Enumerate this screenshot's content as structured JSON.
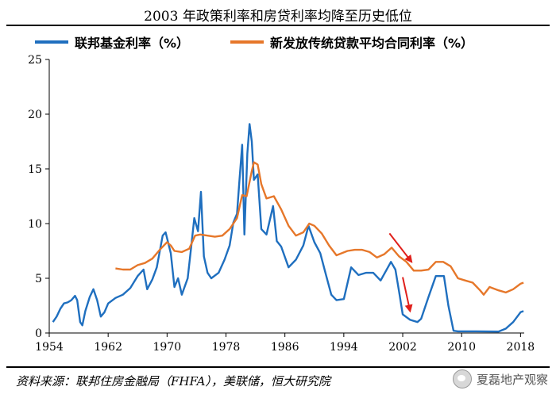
{
  "title": "2003 年政策利率和房贷利率均降至历史低位",
  "legend": {
    "series1": "联邦基金利率（%）",
    "series2": "新发放传统贷款平均合同利率（%）"
  },
  "source": "资料来源：联邦住房金融局（FHFA），美联储，恒大研究院",
  "watermark": "夏磊地产观察",
  "colors": {
    "fed": "#1f6fbf",
    "mortgage": "#e6772a",
    "arrow": "#e0201b",
    "axis": "#000000"
  },
  "chart_data": {
    "type": "line",
    "title": "2003 年政策利率和房贷利率均降至历史低位",
    "x_ticks": [
      "1954",
      "1962",
      "1970",
      "1978",
      "1986",
      "1994",
      "2002",
      "2010",
      "2018"
    ],
    "y_ticks": [
      "0",
      "5",
      "10",
      "15",
      "20",
      "25"
    ],
    "xlim": [
      1954,
      2018.5
    ],
    "ylim": [
      0,
      25
    ],
    "legend_position": "top",
    "grid": false,
    "series": [
      {
        "name": "联邦基金利率（%）",
        "color": "#1f6fbf",
        "points": [
          [
            1954.5,
            1.0
          ],
          [
            1955.0,
            1.5
          ],
          [
            1955.5,
            2.2
          ],
          [
            1956.0,
            2.7
          ],
          [
            1956.5,
            2.8
          ],
          [
            1957.0,
            3.0
          ],
          [
            1957.5,
            3.4
          ],
          [
            1957.8,
            3.0
          ],
          [
            1958.2,
            1.0
          ],
          [
            1958.5,
            0.7
          ],
          [
            1958.9,
            2.0
          ],
          [
            1959.5,
            3.3
          ],
          [
            1960.0,
            4.0
          ],
          [
            1960.5,
            3.0
          ],
          [
            1961.0,
            1.5
          ],
          [
            1961.5,
            1.9
          ],
          [
            1962.0,
            2.7
          ],
          [
            1963.0,
            3.2
          ],
          [
            1964.0,
            3.5
          ],
          [
            1965.0,
            4.1
          ],
          [
            1966.0,
            5.2
          ],
          [
            1966.8,
            5.8
          ],
          [
            1967.3,
            4.0
          ],
          [
            1968.0,
            4.9
          ],
          [
            1968.6,
            6.0
          ],
          [
            1969.4,
            8.9
          ],
          [
            1969.8,
            9.2
          ],
          [
            1970.5,
            7.3
          ],
          [
            1971.0,
            4.2
          ],
          [
            1971.5,
            5.0
          ],
          [
            1972.0,
            3.5
          ],
          [
            1972.8,
            5.0
          ],
          [
            1973.3,
            8.0
          ],
          [
            1973.7,
            10.5
          ],
          [
            1974.2,
            9.3
          ],
          [
            1974.6,
            12.9
          ],
          [
            1975.0,
            7.0
          ],
          [
            1975.5,
            5.5
          ],
          [
            1976.0,
            5.0
          ],
          [
            1977.0,
            5.5
          ],
          [
            1977.8,
            6.7
          ],
          [
            1978.5,
            8.0
          ],
          [
            1979.0,
            10.1
          ],
          [
            1979.5,
            10.9
          ],
          [
            1979.8,
            13.7
          ],
          [
            1980.2,
            17.2
          ],
          [
            1980.5,
            9.0
          ],
          [
            1980.9,
            16.4
          ],
          [
            1981.2,
            19.1
          ],
          [
            1981.5,
            17.5
          ],
          [
            1981.8,
            14.0
          ],
          [
            1982.3,
            14.5
          ],
          [
            1982.8,
            9.5
          ],
          [
            1983.5,
            9.0
          ],
          [
            1984.4,
            11.6
          ],
          [
            1984.9,
            8.4
          ],
          [
            1985.5,
            7.9
          ],
          [
            1986.5,
            6.0
          ],
          [
            1987.5,
            6.7
          ],
          [
            1988.5,
            8.0
          ],
          [
            1989.2,
            9.8
          ],
          [
            1990.0,
            8.3
          ],
          [
            1990.8,
            7.3
          ],
          [
            1991.5,
            5.5
          ],
          [
            1992.3,
            3.5
          ],
          [
            1993.0,
            3.0
          ],
          [
            1994.0,
            3.1
          ],
          [
            1995.0,
            6.0
          ],
          [
            1996.0,
            5.3
          ],
          [
            1997.0,
            5.5
          ],
          [
            1998.0,
            5.5
          ],
          [
            1999.0,
            4.8
          ],
          [
            2000.4,
            6.5
          ],
          [
            2001.0,
            5.8
          ],
          [
            2001.5,
            3.8
          ],
          [
            2002.0,
            1.7
          ],
          [
            2003.0,
            1.2
          ],
          [
            2004.0,
            1.0
          ],
          [
            2004.5,
            1.3
          ],
          [
            2005.5,
            3.3
          ],
          [
            2006.5,
            5.2
          ],
          [
            2007.6,
            5.2
          ],
          [
            2008.2,
            2.5
          ],
          [
            2008.9,
            0.2
          ],
          [
            2009.5,
            0.15
          ],
          [
            2012.0,
            0.15
          ],
          [
            2015.0,
            0.13
          ],
          [
            2016.0,
            0.4
          ],
          [
            2017.0,
            1.0
          ],
          [
            2018.0,
            1.9
          ],
          [
            2018.4,
            2.0
          ]
        ]
      },
      {
        "name": "新发放传统贷款平均合同利率（%）",
        "color": "#e6772a",
        "points": [
          [
            1963.0,
            5.9
          ],
          [
            1964.0,
            5.8
          ],
          [
            1965.0,
            5.8
          ],
          [
            1966.0,
            6.2
          ],
          [
            1967.0,
            6.4
          ],
          [
            1968.0,
            6.8
          ],
          [
            1969.0,
            7.6
          ],
          [
            1970.0,
            8.3
          ],
          [
            1970.5,
            8.0
          ],
          [
            1971.0,
            7.5
          ],
          [
            1972.0,
            7.4
          ],
          [
            1973.0,
            7.7
          ],
          [
            1973.8,
            8.9
          ],
          [
            1974.5,
            9.0
          ],
          [
            1975.5,
            8.9
          ],
          [
            1976.5,
            8.8
          ],
          [
            1977.5,
            8.9
          ],
          [
            1978.5,
            9.5
          ],
          [
            1979.5,
            10.5
          ],
          [
            1980.2,
            12.6
          ],
          [
            1980.8,
            12.5
          ],
          [
            1981.5,
            14.8
          ],
          [
            1981.8,
            15.6
          ],
          [
            1982.3,
            15.4
          ],
          [
            1982.8,
            13.6
          ],
          [
            1983.5,
            12.3
          ],
          [
            1984.5,
            12.5
          ],
          [
            1985.5,
            11.3
          ],
          [
            1986.5,
            9.8
          ],
          [
            1987.5,
            8.9
          ],
          [
            1988.5,
            9.2
          ],
          [
            1989.3,
            10.0
          ],
          [
            1990.0,
            9.8
          ],
          [
            1991.0,
            9.1
          ],
          [
            1992.0,
            8.0
          ],
          [
            1993.0,
            7.1
          ],
          [
            1994.5,
            7.5
          ],
          [
            1995.5,
            7.6
          ],
          [
            1996.5,
            7.6
          ],
          [
            1997.5,
            7.4
          ],
          [
            1998.5,
            6.9
          ],
          [
            1999.5,
            7.2
          ],
          [
            2000.5,
            7.8
          ],
          [
            2001.5,
            7.0
          ],
          [
            2002.5,
            6.5
          ],
          [
            2003.5,
            5.7
          ],
          [
            2004.5,
            5.7
          ],
          [
            2005.5,
            5.8
          ],
          [
            2006.5,
            6.5
          ],
          [
            2007.5,
            6.5
          ],
          [
            2008.5,
            6.1
          ],
          [
            2009.5,
            5.0
          ],
          [
            2010.5,
            4.8
          ],
          [
            2011.5,
            4.6
          ],
          [
            2012.5,
            3.9
          ],
          [
            2013.0,
            3.5
          ],
          [
            2013.8,
            4.2
          ],
          [
            2015.0,
            3.9
          ],
          [
            2016.0,
            3.7
          ],
          [
            2017.0,
            4.0
          ],
          [
            2018.0,
            4.5
          ],
          [
            2018.4,
            4.6
          ]
        ]
      }
    ]
  }
}
